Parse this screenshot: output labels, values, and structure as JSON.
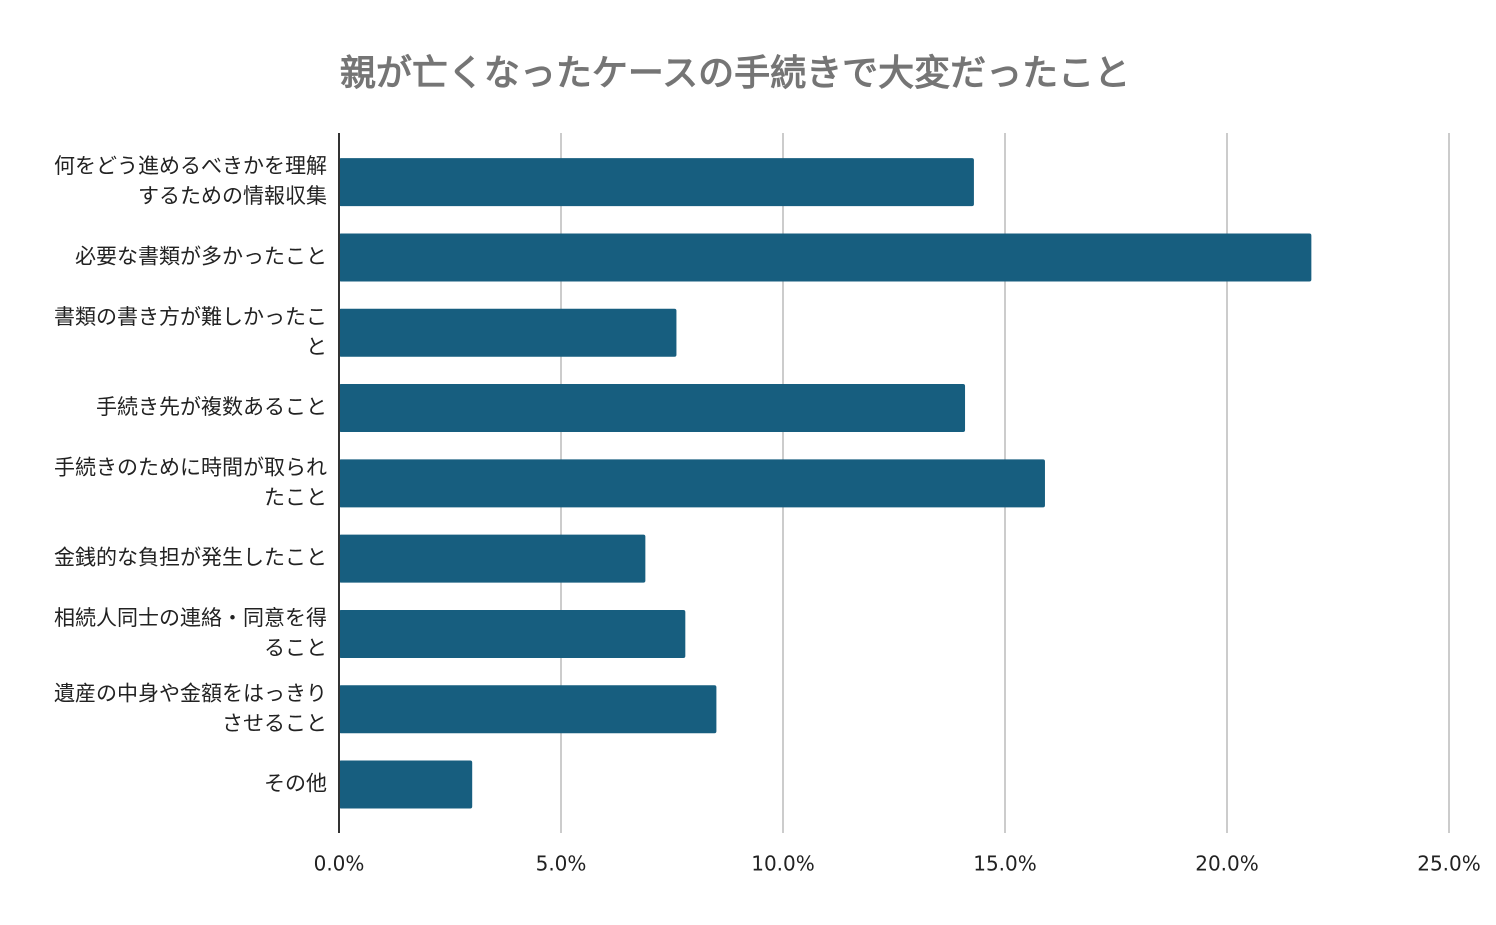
{
  "chart_data": {
    "type": "bar",
    "orientation": "horizontal",
    "title": "親が亡くなったケースの手続きで大変だったこと",
    "categories": [
      "何をどう進めるべきかを理解するための情報収集",
      "必要な書類が多かったこと",
      "書類の書き方が難しかったこと",
      "手続き先が複数あること",
      "手続きのために時間が取られたこと",
      "金銭的な負担が発生したこと",
      "相続人同士の連絡・同意を得ること",
      "遺産の中身や金額をはっきりさせること",
      "その他"
    ],
    "values": [
      14.3,
      21.9,
      7.6,
      14.1,
      15.9,
      6.9,
      7.8,
      8.5,
      3.0
    ],
    "color": "#175e7f",
    "xlim": [
      0,
      25
    ],
    "xticks": [
      {
        "value": 0,
        "label": "0.0%"
      },
      {
        "value": 5,
        "label": "5.0%"
      },
      {
        "value": 10,
        "label": "10.0%"
      },
      {
        "value": 15,
        "label": "15.0%"
      },
      {
        "value": 20,
        "label": "20.0%"
      },
      {
        "value": 25,
        "label": "25.0%"
      }
    ],
    "grid": true
  }
}
